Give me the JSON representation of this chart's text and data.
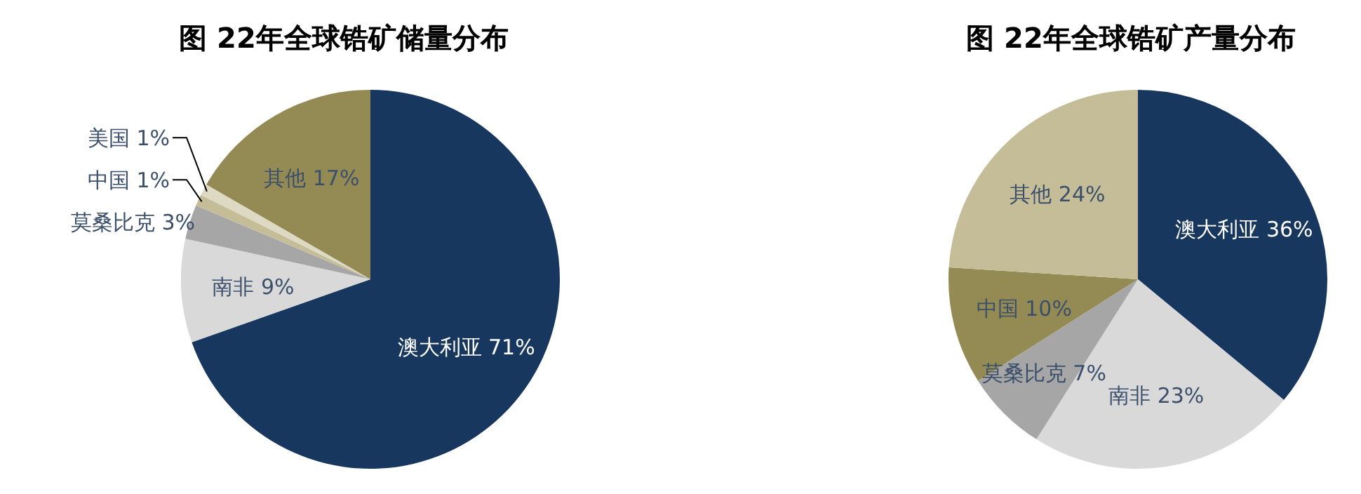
{
  "chart_data": [
    {
      "type": "pie",
      "title": "图 22年全球锆矿储量分布",
      "categories": [
        "澳大利亚",
        "南非",
        "莫桑比克",
        "中国",
        "美国",
        "其他"
      ],
      "values": [
        71,
        9,
        3,
        1,
        1,
        17
      ],
      "value_labels": [
        "71%",
        "9%",
        "3%",
        "1%",
        "1%",
        "17%"
      ],
      "colors": [
        "#17375e",
        "#d9d9d9",
        "#a6a6a6",
        "#c4bd97",
        "#ddd9c3",
        "#948a54"
      ]
    },
    {
      "type": "pie",
      "title": "图 22年全球锆矿产量分布",
      "categories": [
        "澳大利亚",
        "南非",
        "莫桑比克",
        "中国",
        "其他"
      ],
      "values": [
        36,
        23,
        7,
        10,
        24
      ],
      "value_labels": [
        "36%",
        "23%",
        "7%",
        "10%",
        "24%"
      ],
      "colors": [
        "#17375e",
        "#d9d9d9",
        "#a6a6a6",
        "#948a54",
        "#c4bd97"
      ]
    }
  ]
}
